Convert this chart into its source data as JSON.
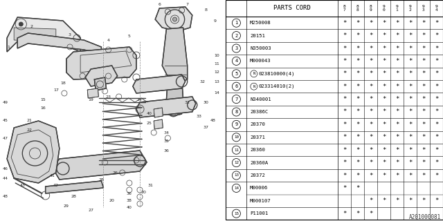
{
  "diagram_label": "A201000081",
  "bg_color": "#ffffff",
  "parts_cord_header": "PARTS CORD",
  "year_headers": [
    "8\n7",
    "8\n8",
    "8\n9",
    "9\n0",
    "9\n1",
    "9\n2",
    "9\n3",
    "9\n4"
  ],
  "rows": [
    {
      "num": 1,
      "code": "M250008",
      "stars": [
        1,
        1,
        1,
        1,
        1,
        1,
        1,
        1
      ],
      "special": null,
      "subcode": null,
      "substars": null
    },
    {
      "num": 2,
      "code": "20151",
      "stars": [
        1,
        1,
        1,
        1,
        1,
        1,
        1,
        1
      ],
      "special": null,
      "subcode": null,
      "substars": null
    },
    {
      "num": 3,
      "code": "N350003",
      "stars": [
        1,
        1,
        1,
        1,
        1,
        1,
        1,
        1
      ],
      "special": null,
      "subcode": null,
      "substars": null
    },
    {
      "num": 4,
      "code": "M000043",
      "stars": [
        1,
        1,
        1,
        1,
        1,
        1,
        1,
        1
      ],
      "special": null,
      "subcode": null,
      "substars": null
    },
    {
      "num": 5,
      "code": "023810000(4)",
      "stars": [
        1,
        1,
        1,
        1,
        1,
        1,
        1,
        1
      ],
      "special": "N",
      "subcode": null,
      "substars": null
    },
    {
      "num": 6,
      "code": "023314010(2)",
      "stars": [
        1,
        1,
        1,
        1,
        1,
        1,
        1,
        1
      ],
      "special": "N",
      "subcode": null,
      "substars": null
    },
    {
      "num": 7,
      "code": "N340001",
      "stars": [
        1,
        1,
        1,
        1,
        1,
        1,
        1,
        1
      ],
      "special": null,
      "subcode": null,
      "substars": null
    },
    {
      "num": 8,
      "code": "20386C",
      "stars": [
        1,
        1,
        1,
        1,
        1,
        1,
        1,
        1
      ],
      "special": null,
      "subcode": null,
      "substars": null
    },
    {
      "num": 9,
      "code": "20370",
      "stars": [
        1,
        1,
        1,
        1,
        1,
        1,
        1,
        1
      ],
      "special": null,
      "subcode": null,
      "substars": null
    },
    {
      "num": 10,
      "code": "20371",
      "stars": [
        1,
        1,
        1,
        1,
        1,
        1,
        1,
        1
      ],
      "special": null,
      "subcode": null,
      "substars": null
    },
    {
      "num": 11,
      "code": "20360",
      "stars": [
        1,
        1,
        1,
        1,
        1,
        1,
        1,
        1
      ],
      "special": null,
      "subcode": null,
      "substars": null
    },
    {
      "num": 12,
      "code": "20360A",
      "stars": [
        1,
        1,
        1,
        1,
        1,
        1,
        1,
        1
      ],
      "special": null,
      "subcode": null,
      "substars": null
    },
    {
      "num": 13,
      "code": "20372",
      "stars": [
        1,
        1,
        1,
        1,
        1,
        1,
        1,
        1
      ],
      "special": null,
      "subcode": null,
      "substars": null
    },
    {
      "num": 14,
      "code": "M00006",
      "stars": [
        1,
        1,
        0,
        0,
        0,
        0,
        0,
        0
      ],
      "special": null,
      "subcode": "M000107",
      "substars": [
        0,
        0,
        1,
        1,
        1,
        1,
        1,
        1
      ]
    },
    {
      "num": 15,
      "code": "P11001",
      "stars": [
        1,
        1,
        1,
        0,
        0,
        0,
        0,
        0
      ],
      "special": null,
      "subcode": null,
      "substars": null
    }
  ],
  "lc": "#404040",
  "lw_thick": 1.5,
  "lw_med": 1.0,
  "lw_thin": 0.6,
  "lw_dash": 0.5
}
